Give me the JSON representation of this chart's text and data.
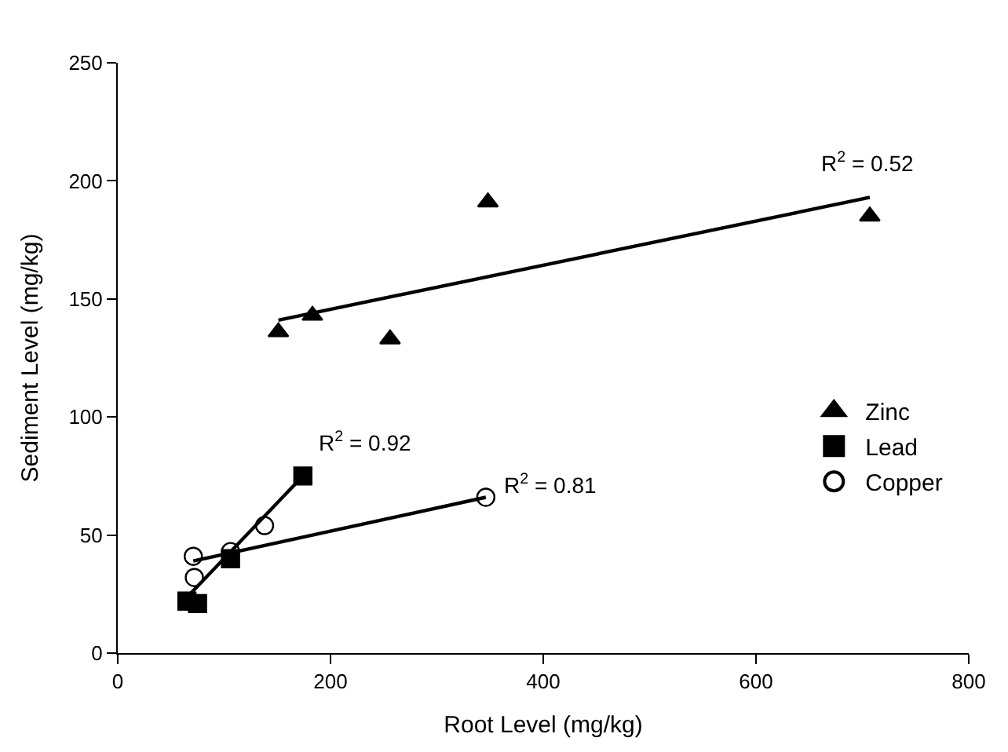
{
  "chart_data": {
    "type": "scatter",
    "xlabel": "Root Level (mg/kg)",
    "ylabel": "Sediment Level (mg/kg)",
    "xlim": [
      0,
      800
    ],
    "xticks": [
      0,
      200,
      400,
      600,
      800
    ],
    "ylim": [
      0,
      250
    ],
    "yticks": [
      0,
      50,
      100,
      150,
      200,
      250
    ],
    "grid": false,
    "legend": "right",
    "series": [
      {
        "name": "Zinc",
        "color": "#000000",
        "marker": "triangle",
        "x": [
          151,
          183,
          256,
          348,
          707
        ],
        "values": [
          136,
          143,
          133,
          191,
          185
        ]
      },
      {
        "name": "Lead",
        "color": "#000000",
        "marker": "square",
        "x": [
          65,
          75,
          106,
          174
        ],
        "values": [
          22,
          21,
          40,
          75
        ]
      },
      {
        "name": "Copper",
        "color": "#000000",
        "marker": "circle_open",
        "x": [
          71,
          72,
          106,
          138,
          346
        ],
        "values": [
          41,
          32,
          43,
          54,
          66
        ]
      },
      {
        "type": "line",
        "color": "#000000",
        "x": [
          151,
          707
        ],
        "values": [
          141,
          193
        ]
      },
      {
        "type": "line",
        "color": "#000000",
        "x": [
          68,
          174
        ],
        "values": [
          25,
          75
        ]
      },
      {
        "type": "line",
        "color": "#000000",
        "x": [
          71,
          346
        ],
        "values": [
          39,
          66
        ]
      }
    ],
    "annotations": [
      "R$^{2}$ = 0.52",
      "R$^{2}$ = 0.92",
      "R$^{2}$ = 0.81"
    ]
  }
}
